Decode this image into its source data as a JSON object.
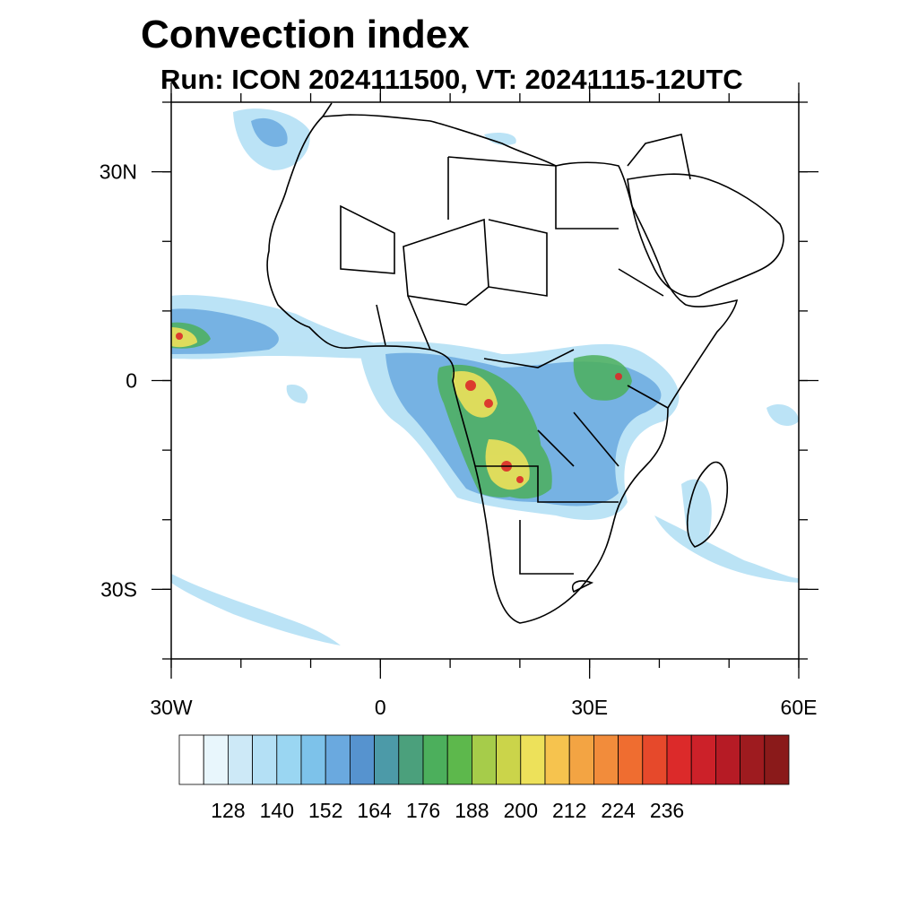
{
  "title": "Convection index",
  "subtitle": "Run: ICON 2024111500,  VT: 20241115-12UTC",
  "map": {
    "region": "Africa",
    "lon_range": [
      -30,
      60
    ],
    "lat_range": [
      -40,
      40
    ],
    "x_ticks": [
      {
        "lon": -30,
        "label": "30W"
      },
      {
        "lon": 0,
        "label": "0"
      },
      {
        "lon": 30,
        "label": "30E"
      },
      {
        "lon": 60,
        "label": "60E"
      }
    ],
    "y_ticks": [
      {
        "lat": 30,
        "label": "30N"
      },
      {
        "lat": 0,
        "label": "0"
      },
      {
        "lat": -30,
        "label": "30S"
      }
    ],
    "minor_lon_step": 10,
    "minor_lat_step": 10
  },
  "colorbar": {
    "colors": [
      "#ffffff",
      "#e8f6fc",
      "#cde9f7",
      "#b4e0f5",
      "#9ad6f2",
      "#7dc2ea",
      "#6aa9df",
      "#5693cf",
      "#4c9aa8",
      "#4ba07c",
      "#4caf5c",
      "#5db84c",
      "#a6cc4a",
      "#cbd44a",
      "#ede15a",
      "#f6c34e",
      "#f3a443",
      "#f28c3b",
      "#ef6d30",
      "#e6492b",
      "#dc2a2a",
      "#cc2129",
      "#b61b25",
      "#9e1b1f",
      "#8a1a1a"
    ],
    "labels": [
      "128",
      "140",
      "152",
      "164",
      "176",
      "188",
      "200",
      "212",
      "224",
      "236"
    ],
    "label_every": 2,
    "label_offset": 2
  },
  "colors": {
    "coastline": "#000000",
    "low": "#7dc2ea",
    "mid": "#4caf5c",
    "high": "#ede15a",
    "peak": "#dc2a2a"
  }
}
